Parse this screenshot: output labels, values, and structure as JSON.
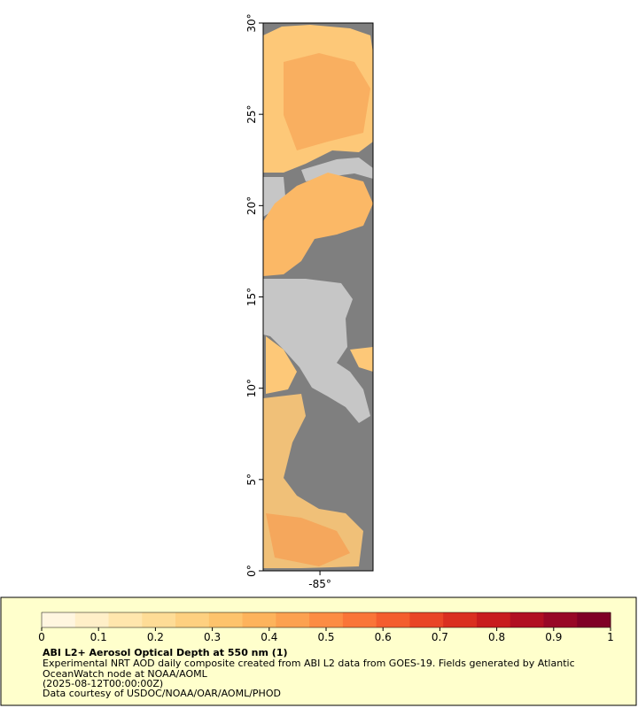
{
  "map": {
    "type": "map",
    "ylim": [
      0,
      30
    ],
    "yticks": [
      {
        "value": 0,
        "label": "0°"
      },
      {
        "value": 5,
        "label": "5°"
      },
      {
        "value": 10,
        "label": "10°"
      },
      {
        "value": 15,
        "label": "15°"
      },
      {
        "value": 20,
        "label": "20°"
      },
      {
        "value": 25,
        "label": "25°"
      },
      {
        "value": 30,
        "label": "30°"
      }
    ],
    "xlim": [
      -88.1,
      -82.1
    ],
    "xticks": [
      {
        "value": -85,
        "label": "-85°"
      }
    ]
  },
  "legend": {
    "title": "ABI L2+ Aerosol Optical Depth at 550 nm (1)",
    "description": "Experimental NRT AOD daily composite created from ABI L2 data from GOES-19. Fields generated by Atlantic OceanWatch node at NOAA/AOML",
    "time": "(2025-08-12T00:00:00Z)",
    "credit": "Data courtesy of USDOC/NOAA/OAR/AOML/PHOD",
    "colorbar": {
      "range": [
        0,
        1
      ],
      "ticks": [
        0,
        0.1,
        0.2,
        0.3,
        0.4,
        0.5,
        0.6,
        0.7,
        0.8,
        0.9,
        1
      ],
      "colors": [
        "#fff6e0",
        "#ffefc8",
        "#ffe6ad",
        "#fedc96",
        "#fed080",
        "#fdc36c",
        "#fdb35c",
        "#fca150",
        "#fc8c44",
        "#fa7538",
        "#f45d2e",
        "#e94526",
        "#da2f20",
        "#c81c1e",
        "#b10f22",
        "#980726",
        "#800026"
      ]
    }
  }
}
